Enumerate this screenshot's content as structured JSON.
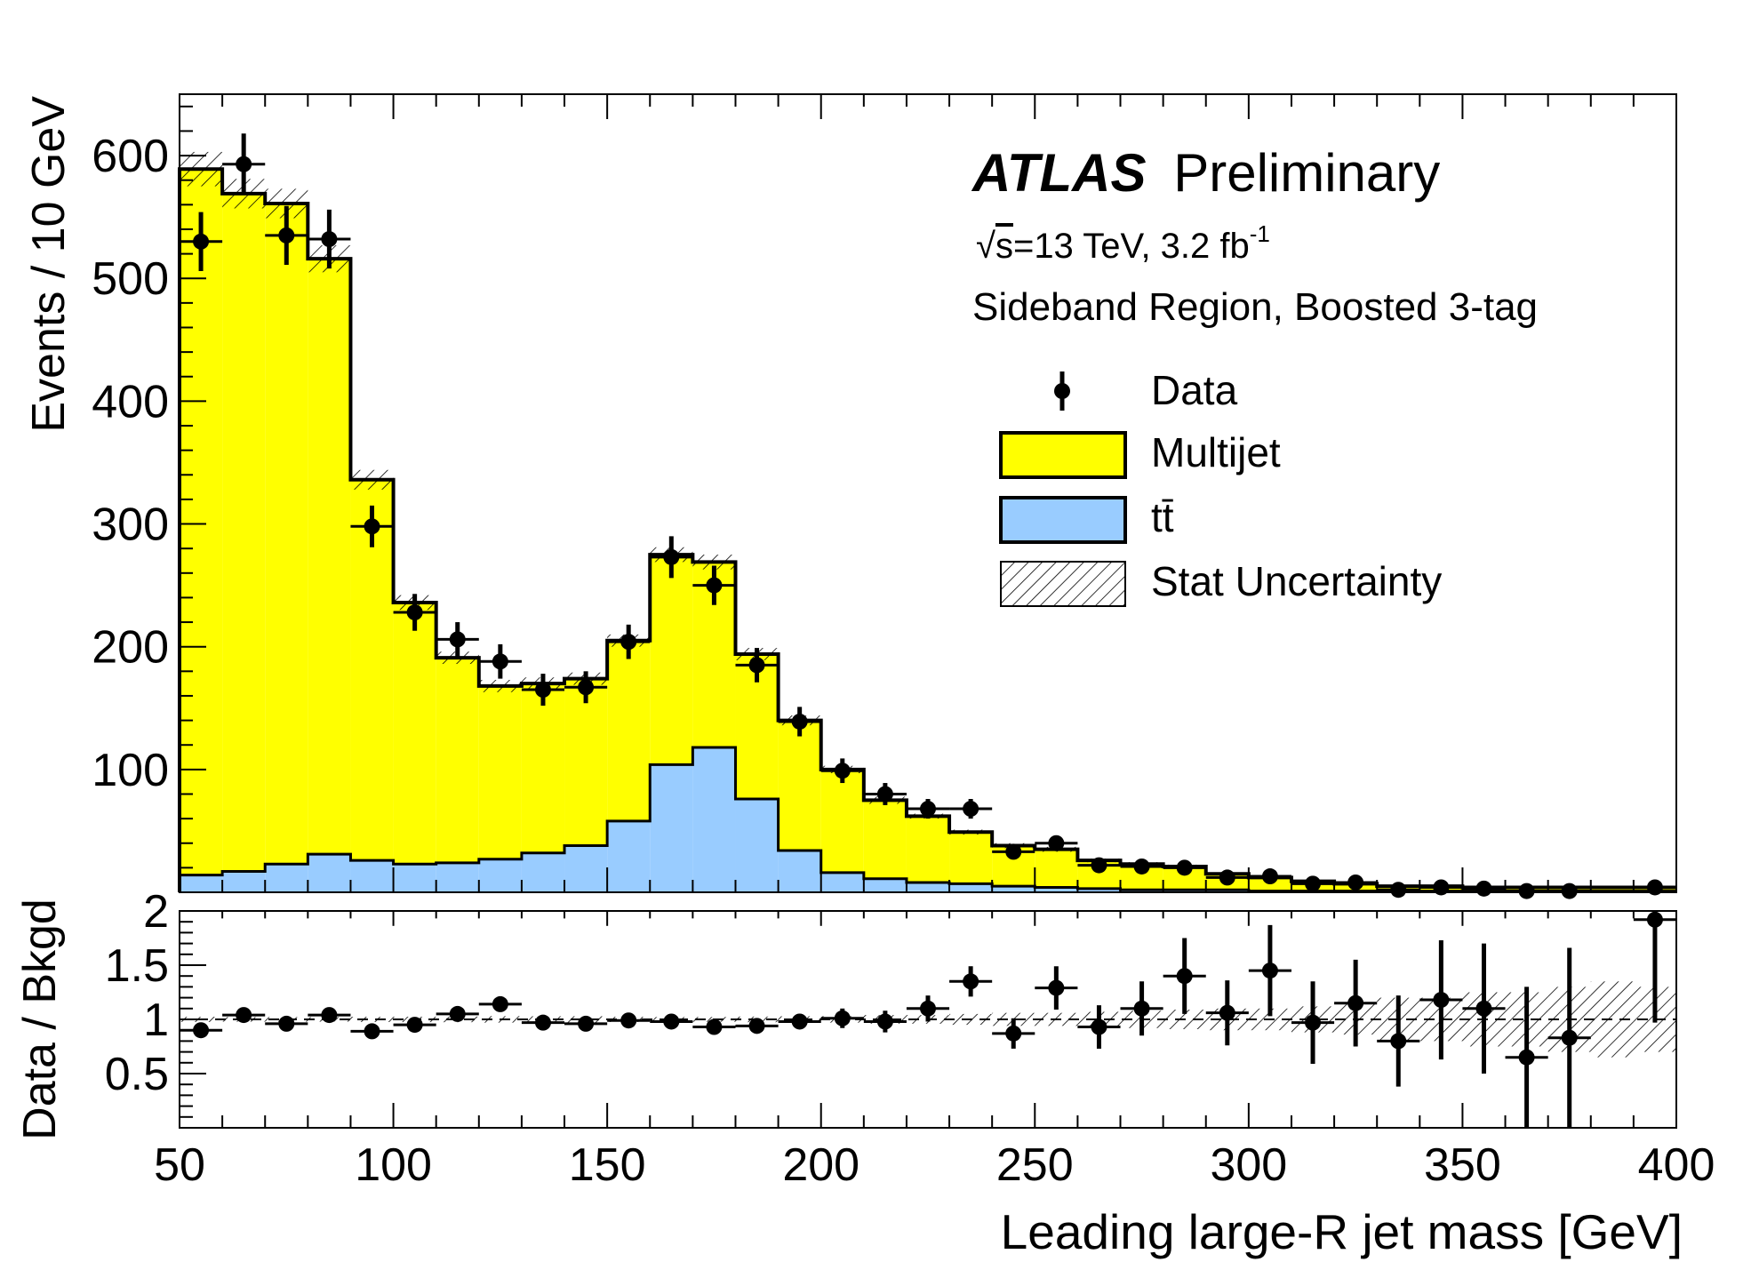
{
  "chart_data": {
    "type": "bar",
    "x_edges": [
      50,
      60,
      70,
      80,
      90,
      100,
      110,
      120,
      130,
      140,
      150,
      160,
      170,
      180,
      190,
      200,
      210,
      220,
      230,
      240,
      250,
      260,
      270,
      280,
      290,
      300,
      310,
      320,
      330,
      340,
      350,
      360,
      370,
      380,
      390,
      400
    ],
    "xlabel": "Leading large-R jet mass [GeV]",
    "ylabel": "Events / 10 GeV",
    "ratio_ylabel": "Data / Bkgd",
    "xlim": [
      50,
      400
    ],
    "ylim": [
      0,
      650
    ],
    "ratio_ylim": [
      0,
      2
    ],
    "x_ticks": [
      "50",
      "100",
      "150",
      "200",
      "250",
      "300",
      "350",
      "400"
    ],
    "y_ticks": [
      "100",
      "200",
      "300",
      "400",
      "500",
      "600"
    ],
    "ratio_ticks": [
      "0.5",
      "1",
      "1.5",
      "2"
    ],
    "series": [
      {
        "name": "Multijet",
        "color": "#ffff00",
        "values": [
          575,
          552,
          538,
          485,
          310,
          213,
          167,
          141,
          138,
          136,
          147,
          171,
          151,
          118,
          106,
          84,
          64,
          54,
          42,
          33,
          31,
          23,
          21,
          19,
          13,
          11,
          8,
          6,
          4,
          4,
          3,
          3,
          3,
          3,
          3
        ]
      },
      {
        "name": "tt̄",
        "color": "#99ccff",
        "values": [
          14,
          17,
          23,
          31,
          26,
          23,
          24,
          27,
          32,
          38,
          58,
          104,
          118,
          76,
          34,
          16,
          11,
          8,
          7,
          5,
          4,
          3,
          2,
          2,
          2,
          1,
          1,
          1,
          1,
          1,
          1,
          1,
          1,
          1,
          1
        ]
      }
    ],
    "total": [
      589,
      569,
      561,
      516,
      336,
      236,
      191,
      168,
      170,
      174,
      205,
      275,
      269,
      194,
      140,
      100,
      75,
      62,
      49,
      38,
      35,
      26,
      23,
      21,
      15,
      12,
      9,
      7,
      5,
      5,
      4,
      4,
      4,
      4,
      4
    ],
    "stat_unc": [
      14,
      12,
      12,
      11,
      8,
      6,
      5,
      5,
      5,
      5,
      5,
      6,
      6,
      5,
      4,
      3,
      3,
      2,
      2,
      2,
      2,
      1.5,
      1.5,
      1.5,
      1,
      1,
      1,
      1,
      1,
      1,
      1,
      1,
      1,
      1,
      1
    ],
    "data": [
      {
        "x": 55,
        "y": 530,
        "err": 24
      },
      {
        "x": 65,
        "y": 593,
        "err": 25
      },
      {
        "x": 75,
        "y": 535,
        "err": 24
      },
      {
        "x": 85,
        "y": 532,
        "err": 24
      },
      {
        "x": 95,
        "y": 298,
        "err": 17
      },
      {
        "x": 105,
        "y": 228,
        "err": 15
      },
      {
        "x": 115,
        "y": 206,
        "err": 14
      },
      {
        "x": 125,
        "y": 188,
        "err": 14
      },
      {
        "x": 135,
        "y": 165,
        "err": 13
      },
      {
        "x": 145,
        "y": 167,
        "err": 13
      },
      {
        "x": 155,
        "y": 204,
        "err": 14
      },
      {
        "x": 165,
        "y": 273,
        "err": 17
      },
      {
        "x": 175,
        "y": 250,
        "err": 16
      },
      {
        "x": 185,
        "y": 185,
        "err": 14
      },
      {
        "x": 195,
        "y": 139,
        "err": 12
      },
      {
        "x": 205,
        "y": 99,
        "err": 10
      },
      {
        "x": 215,
        "y": 80,
        "err": 9
      },
      {
        "x": 225,
        "y": 68,
        "err": 8
      },
      {
        "x": 235,
        "y": 68,
        "err": 8
      },
      {
        "x": 245,
        "y": 33,
        "err": 6
      },
      {
        "x": 255,
        "y": 40,
        "err": 6
      },
      {
        "x": 265,
        "y": 22,
        "err": 5
      },
      {
        "x": 275,
        "y": 21,
        "err": 5
      },
      {
        "x": 285,
        "y": 20,
        "err": 4.5
      },
      {
        "x": 295,
        "y": 12,
        "err": 3.5
      },
      {
        "x": 305,
        "y": 13,
        "err": 3.6
      },
      {
        "x": 315,
        "y": 7,
        "err": 2.6
      },
      {
        "x": 325,
        "y": 8,
        "err": 2.8
      },
      {
        "x": 335,
        "y": 2,
        "err": 1.4
      },
      {
        "x": 345,
        "y": 4,
        "err": 2
      },
      {
        "x": 355,
        "y": 3,
        "err": 1.7
      },
      {
        "x": 365,
        "y": 1,
        "err": 1
      },
      {
        "x": 375,
        "y": 1,
        "err": 1
      },
      {
        "x": 395,
        "y": 4,
        "err": 2
      }
    ],
    "ratio": [
      {
        "x": 55,
        "y": 0.9,
        "err": 0.04
      },
      {
        "x": 65,
        "y": 1.04,
        "err": 0.04
      },
      {
        "x": 75,
        "y": 0.96,
        "err": 0.04
      },
      {
        "x": 85,
        "y": 1.04,
        "err": 0.04
      },
      {
        "x": 95,
        "y": 0.89,
        "err": 0.05
      },
      {
        "x": 105,
        "y": 0.95,
        "err": 0.06
      },
      {
        "x": 115,
        "y": 1.05,
        "err": 0.06
      },
      {
        "x": 125,
        "y": 1.14,
        "err": 0.06
      },
      {
        "x": 135,
        "y": 0.97,
        "err": 0.06
      },
      {
        "x": 145,
        "y": 0.96,
        "err": 0.06
      },
      {
        "x": 155,
        "y": 0.99,
        "err": 0.06
      },
      {
        "x": 165,
        "y": 0.98,
        "err": 0.05
      },
      {
        "x": 175,
        "y": 0.93,
        "err": 0.05
      },
      {
        "x": 185,
        "y": 0.94,
        "err": 0.06
      },
      {
        "x": 195,
        "y": 0.98,
        "err": 0.07
      },
      {
        "x": 205,
        "y": 1.01,
        "err": 0.09
      },
      {
        "x": 215,
        "y": 0.98,
        "err": 0.1
      },
      {
        "x": 225,
        "y": 1.1,
        "err": 0.12
      },
      {
        "x": 235,
        "y": 1.35,
        "err": 0.14
      },
      {
        "x": 245,
        "y": 0.87,
        "err": 0.14
      },
      {
        "x": 255,
        "y": 1.29,
        "err": 0.2
      },
      {
        "x": 265,
        "y": 0.93,
        "err": 0.2
      },
      {
        "x": 275,
        "y": 1.1,
        "err": 0.25
      },
      {
        "x": 285,
        "y": 1.4,
        "err": 0.35
      },
      {
        "x": 295,
        "y": 1.06,
        "err": 0.3
      },
      {
        "x": 305,
        "y": 1.45,
        "err": 0.42
      },
      {
        "x": 315,
        "y": 0.97,
        "err": 0.38
      },
      {
        "x": 325,
        "y": 1.15,
        "err": 0.4
      },
      {
        "x": 335,
        "y": 0.8,
        "err": 0.42
      },
      {
        "x": 345,
        "y": 1.18,
        "err": 0.55
      },
      {
        "x": 355,
        "y": 1.1,
        "err": 0.6
      },
      {
        "x": 365,
        "y": 0.65,
        "err": 0.65
      },
      {
        "x": 375,
        "y": 0.83,
        "err": 0.83
      },
      {
        "x": 395,
        "y": 1.92,
        "err": 0.95
      }
    ],
    "ratio_unc": [
      0.024,
      0.021,
      0.021,
      0.021,
      0.024,
      0.025,
      0.026,
      0.03,
      0.029,
      0.029,
      0.024,
      0.022,
      0.022,
      0.026,
      0.029,
      0.03,
      0.04,
      0.04,
      0.05,
      0.06,
      0.06,
      0.07,
      0.08,
      0.09,
      0.1,
      0.1,
      0.12,
      0.14,
      0.2,
      0.2,
      0.25,
      0.25,
      0.3,
      0.35,
      0.3
    ],
    "legend": [
      "Data",
      "Multijet",
      "tt̄",
      "Stat Uncertainty"
    ],
    "legend_position": "top-right"
  },
  "annotations": {
    "atlas": "ATLAS",
    "preliminary": "Preliminary",
    "sqrt_s": "s",
    "energy": "=13 TeV, 3.2 fb",
    "lumi_exp": "-1",
    "region": "Sideband Region, Boosted 3-tag"
  }
}
